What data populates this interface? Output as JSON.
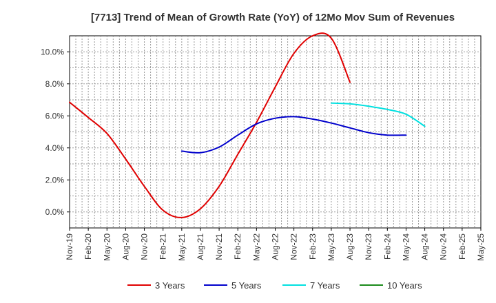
{
  "chart_data": {
    "type": "line",
    "title": "[7713]  Trend of Mean of Growth Rate (YoY) of 12Mo Mov Sum of Revenues",
    "xlabel": "",
    "ylabel": "",
    "ylim": [
      -1.0,
      11.0
    ],
    "y_ticks": [
      0,
      2,
      4,
      6,
      8,
      10
    ],
    "y_tick_labels": [
      "0.0%",
      "2.0%",
      "4.0%",
      "6.0%",
      "8.0%",
      "10.0%"
    ],
    "x_tick_labels": [
      "Nov-19",
      "Feb-20",
      "May-20",
      "Aug-20",
      "Nov-20",
      "Feb-21",
      "May-21",
      "Aug-21",
      "Nov-21",
      "Feb-22",
      "May-22",
      "Aug-22",
      "Nov-22",
      "Feb-23",
      "May-23",
      "Aug-23",
      "Nov-23",
      "Feb-24",
      "May-24",
      "Aug-24",
      "Nov-24",
      "Feb-25",
      "May-25"
    ],
    "grid": true,
    "legend_position": "bottom",
    "series": [
      {
        "name": "3 Years",
        "color": "#e00000",
        "values": [
          6.85,
          5.9,
          4.9,
          3.3,
          1.6,
          0.1,
          -0.35,
          0.2,
          1.6,
          3.6,
          5.6,
          7.8,
          9.9,
          11.0,
          10.85,
          8.1
        ],
        "start_index": 0
      },
      {
        "name": "5 Years",
        "color": "#0000cc",
        "values": [
          3.8,
          3.7,
          4.05,
          4.8,
          5.5,
          5.85,
          5.95,
          5.8,
          5.55,
          5.25,
          4.95,
          4.8,
          4.8
        ],
        "start_index": 6
      },
      {
        "name": "7 Years",
        "color": "#00e0e0",
        "values": [
          6.8,
          6.75,
          6.6,
          6.4,
          6.1,
          5.35
        ],
        "start_index": 14
      },
      {
        "name": "10 Years",
        "color": "#1a8a1a",
        "values": [],
        "start_index": 0
      }
    ]
  }
}
